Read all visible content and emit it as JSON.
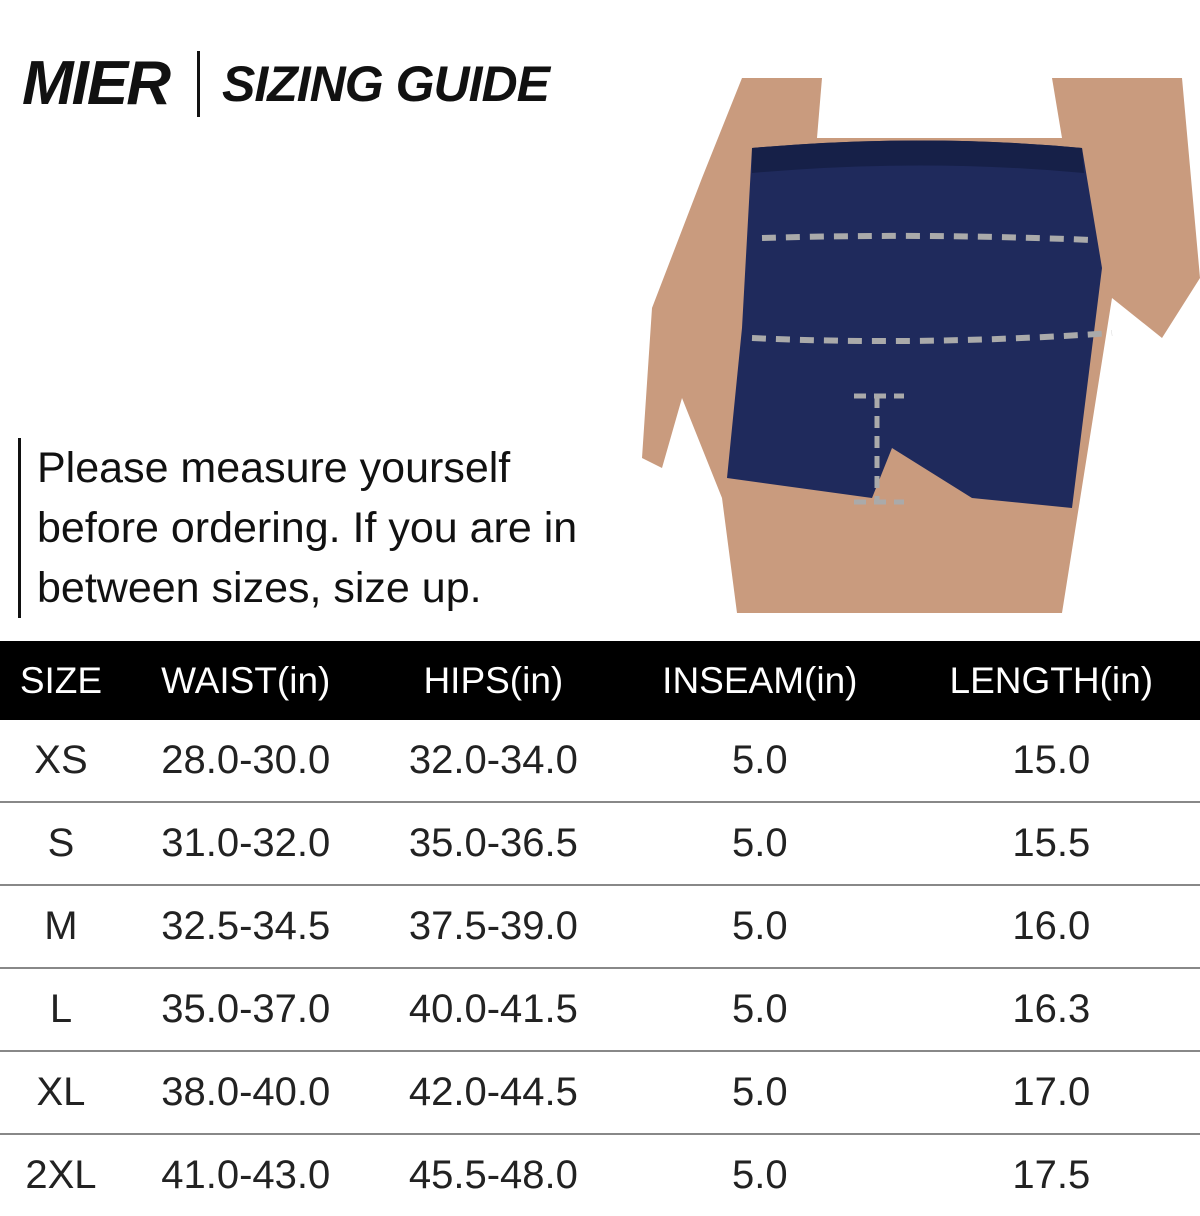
{
  "header": {
    "brand": "MIER",
    "title": "SIZING GUIDE"
  },
  "note": "Please measure yourself before ordering. If you are in between sizes, size up.",
  "table": {
    "columns": [
      "SIZE",
      "WAIST(in)",
      "HIPS(in)",
      "INSEAM(in)",
      "LENGTH(in)"
    ],
    "rows": [
      [
        "XS",
        "28.0-30.0",
        "32.0-34.0",
        "5.0",
        "15.0"
      ],
      [
        "S",
        "31.0-32.0",
        "35.0-36.5",
        "5.0",
        "15.5"
      ],
      [
        "M",
        "32.5-34.5",
        "37.5-39.0",
        "5.0",
        "16.0"
      ],
      [
        "L",
        "35.0-37.0",
        "40.0-41.5",
        "5.0",
        "16.3"
      ],
      [
        "XL",
        "38.0-40.0",
        "42.0-44.5",
        "5.0",
        "17.0"
      ],
      [
        "2XL",
        "41.0-43.0",
        "45.5-48.0",
        "5.0",
        "17.5"
      ]
    ]
  },
  "colors": {
    "shorts": "#1f2a5c",
    "skin": "#c99b7e"
  }
}
